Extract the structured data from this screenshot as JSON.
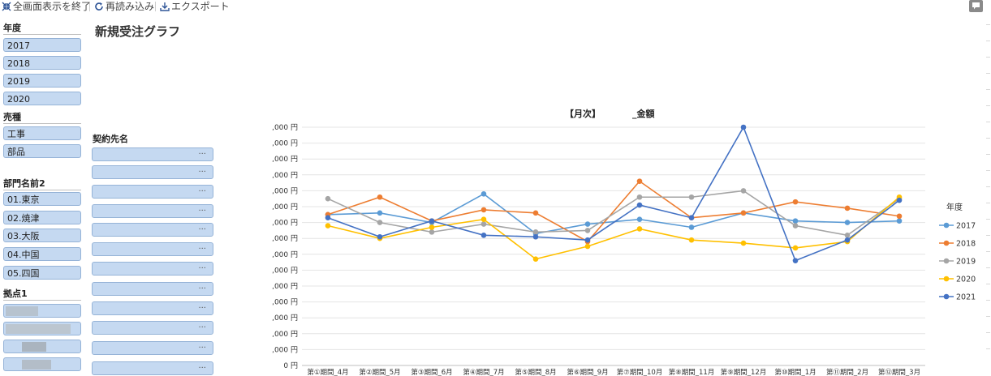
{
  "toolbar": {
    "exit_fullscreen": "全画面表示を終了",
    "reload": "再読み込み",
    "export": "エクスポート"
  },
  "page_title": "新規受注グラフ",
  "slicers": {
    "year": {
      "title": "年度",
      "items": [
        "2017",
        "2018",
        "2019",
        "2020"
      ]
    },
    "sales_type": {
      "title": "売種",
      "items": [
        "工事",
        "部品"
      ]
    },
    "department": {
      "title": "部門名前2",
      "items": [
        "01.東京",
        "02.焼津",
        "03.大阪",
        "04.中国",
        "05.四国"
      ]
    },
    "base": {
      "title": "拠点1"
    },
    "contractor": {
      "title": "契約先名",
      "more_label": "···"
    }
  },
  "chart_data": {
    "type": "line",
    "title_part1": "【月次】",
    "title_part2": "_金額",
    "y_tick_labels": [
      ",000 円",
      ",000 円",
      ",000 円",
      ",000 円",
      ",000 円",
      ",000 円",
      ",000 円",
      ",000 円",
      ",000 円",
      ",000 円",
      ",000 円",
      ",000 円",
      ",000 円",
      ",000 円",
      ",000 円",
      "0 円"
    ],
    "ylim": [
      0,
      15
    ],
    "categories": [
      "第①期間_4月",
      "第②期間_5月",
      "第③期間_6月",
      "第④期間_7月",
      "第⑤期間_8月",
      "第⑥期間_9月",
      "第⑦期間_10月",
      "第⑧期間_11月",
      "第⑨期間_12月",
      "第⑩期間_1月",
      "第⑪期間_2月",
      "第⑫期間_3月"
    ],
    "legend_title": "年度",
    "legend_position": "right",
    "grid": true,
    "series": [
      {
        "name": "2017",
        "color": "#5b9bd5",
        "values": [
          9.5,
          9.6,
          9.0,
          10.8,
          8.3,
          8.9,
          9.2,
          8.7,
          9.6,
          9.1,
          9.0,
          9.1
        ]
      },
      {
        "name": "2018",
        "color": "#ed7d31",
        "values": [
          9.5,
          10.6,
          9.1,
          9.8,
          9.6,
          7.8,
          11.6,
          9.3,
          9.6,
          10.3,
          9.9,
          9.4
        ]
      },
      {
        "name": "2019",
        "color": "#a5a5a5",
        "values": [
          10.5,
          9.0,
          8.4,
          8.9,
          8.4,
          8.5,
          10.6,
          10.6,
          11.0,
          8.8,
          8.2,
          10.5
        ]
      },
      {
        "name": "2020",
        "color": "#ffc000",
        "values": [
          8.8,
          8.0,
          8.7,
          9.2,
          6.7,
          7.5,
          8.6,
          7.9,
          7.7,
          7.4,
          7.8,
          10.6
        ]
      },
      {
        "name": "2021",
        "color": "#4472c4",
        "values": [
          9.3,
          8.1,
          9.1,
          8.2,
          8.1,
          7.9,
          10.1,
          9.3,
          15.0,
          6.6,
          7.9,
          10.4
        ]
      }
    ]
  }
}
